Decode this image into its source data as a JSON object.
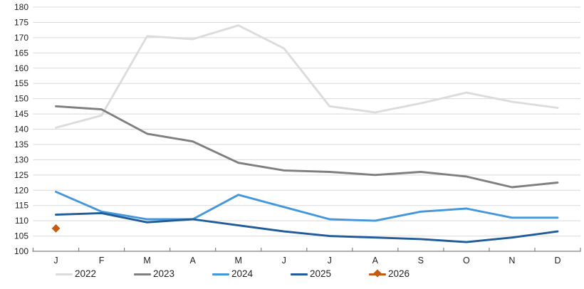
{
  "chart_data": {
    "type": "line",
    "title": "",
    "xlabel": "",
    "ylabel": "",
    "grid": true,
    "legend_position": "bottom",
    "x_categories": [
      "J",
      "F",
      "M",
      "A",
      "M",
      "J",
      "J",
      "A",
      "S",
      "O",
      "N",
      "D"
    ],
    "y_axis": {
      "min": 100,
      "max": 180,
      "step": 5
    },
    "y_tick_labels": [
      "100",
      "105",
      "110",
      "115",
      "120",
      "125",
      "130",
      "135",
      "140",
      "145",
      "150",
      "155",
      "160",
      "165",
      "170",
      "175",
      "180"
    ],
    "series": [
      {
        "name": "2022",
        "color": "#DCDCDC",
        "marker": "none",
        "values": [
          140.5,
          144.5,
          170.5,
          169.5,
          174,
          166.5,
          147.5,
          145.5,
          148.5,
          152,
          149,
          147
        ]
      },
      {
        "name": "2023",
        "color": "#7F7F7F",
        "marker": "none",
        "values": [
          147.5,
          146.5,
          138.5,
          136,
          129,
          126.5,
          126,
          125,
          126,
          124.5,
          121,
          122.5
        ]
      },
      {
        "name": "2024",
        "color": "#4497DB",
        "marker": "none",
        "values": [
          119.5,
          113,
          110.5,
          110.5,
          118.5,
          114.5,
          110.5,
          110,
          113,
          114,
          111,
          111
        ]
      },
      {
        "name": "2025",
        "color": "#1F5C99",
        "marker": "none",
        "values": [
          112,
          112.5,
          109.5,
          110.5,
          108.5,
          106.5,
          105,
          104.5,
          104,
          103,
          104.5,
          106.5
        ]
      },
      {
        "name": "2026",
        "color": "#C55A11",
        "marker": "diamond",
        "values": [
          107.5,
          null,
          null,
          null,
          null,
          null,
          null,
          null,
          null,
          null,
          null,
          null
        ]
      }
    ],
    "colors": {
      "gridline": "#D9D9D9",
      "axis": "#808080",
      "tick_text": "#1F1F1F"
    }
  }
}
